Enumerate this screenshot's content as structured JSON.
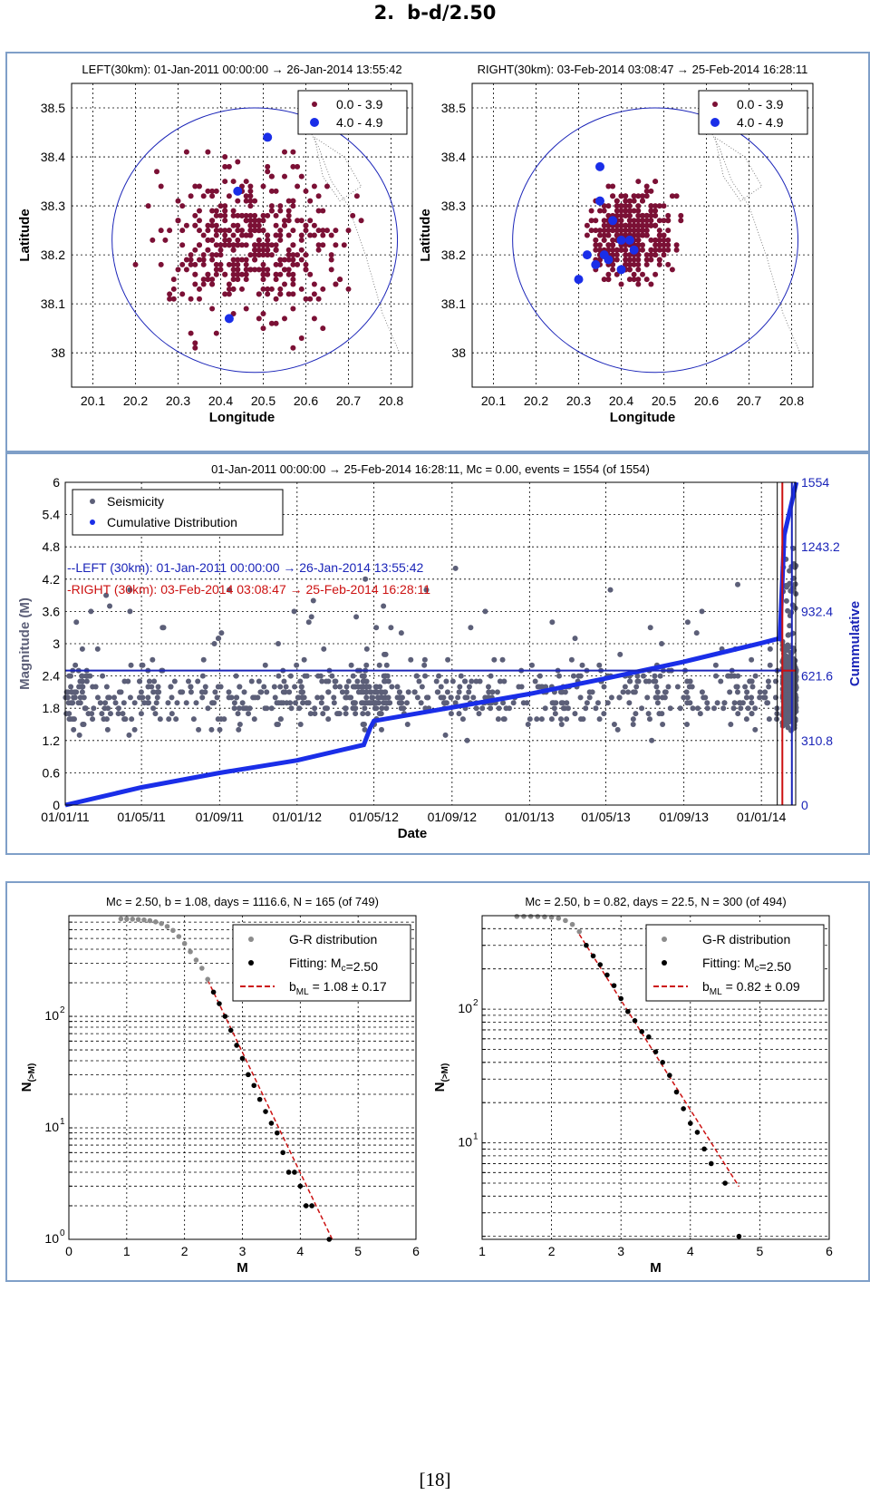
{
  "page": {
    "heading_number": "2.",
    "heading_text": "b-d/2.50",
    "page_number": "[18]"
  },
  "colors": {
    "small": "#7b1035",
    "large": "#1a2ee8",
    "seis": "#5c5f78",
    "cum": "#1a2ee8",
    "red": "#cc1111",
    "axis_blue": "#1a24b8",
    "panel_border": "#7f9fc8",
    "gr_grey": "#8c8c8c",
    "fit_black": "#000000"
  },
  "chart_data": [
    {
      "type": "scatter",
      "id": "map-left",
      "title": "LEFT(30km): 01-Jan-2011 00:00:00 → 26-Jan-2014 13:55:42",
      "xlabel": "Longitude",
      "ylabel": "Latitude",
      "xlim": [
        20.05,
        20.85
      ],
      "ylim": [
        37.93,
        38.55
      ],
      "xticks": [
        "20.1",
        "20.2",
        "20.3",
        "20.4",
        "20.5",
        "20.6",
        "20.7",
        "20.8"
      ],
      "yticks": [
        "38",
        "38.1",
        "38.2",
        "38.3",
        "38.4",
        "38.5"
      ],
      "grid": true,
      "legend_position": "top-right",
      "circle": {
        "center": [
          20.48,
          38.23
        ],
        "rx": 0.335,
        "ry": 0.27
      },
      "series": [
        {
          "name": "0.0 - 3.9",
          "center": [
            20.48,
            38.22
          ],
          "spread": [
            0.14,
            0.11
          ],
          "count": 420,
          "seed": 11
        },
        {
          "name": "4.0 - 4.9",
          "points": [
            [
              20.51,
              38.44
            ],
            [
              20.44,
              38.33
            ],
            [
              20.42,
              38.07
            ]
          ]
        }
      ]
    },
    {
      "type": "scatter",
      "id": "map-right",
      "title": "RIGHT(30km): 03-Feb-2014 03:08:47 → 25-Feb-2014 16:28:11",
      "xlabel": "Longitude",
      "ylabel": "Latitude",
      "xlim": [
        20.05,
        20.85
      ],
      "ylim": [
        37.93,
        38.55
      ],
      "xticks": [
        "20.1",
        "20.2",
        "20.3",
        "20.4",
        "20.5",
        "20.6",
        "20.7",
        "20.8"
      ],
      "yticks": [
        "38",
        "38.1",
        "38.2",
        "38.3",
        "38.4",
        "38.5"
      ],
      "grid": true,
      "legend_position": "top-right",
      "circle": {
        "center": [
          20.48,
          38.23
        ],
        "rx": 0.335,
        "ry": 0.27
      },
      "series": [
        {
          "name": "0.0 - 3.9",
          "center": [
            20.42,
            38.24
          ],
          "spread": [
            0.06,
            0.06
          ],
          "count": 380,
          "seed": 23
        },
        {
          "name": "4.0 - 4.9",
          "points": [
            [
              20.35,
              38.38
            ],
            [
              20.35,
              38.31
            ],
            [
              20.38,
              38.27
            ],
            [
              20.4,
              38.23
            ],
            [
              20.42,
              38.23
            ],
            [
              20.43,
              38.21
            ],
            [
              20.36,
              38.2
            ],
            [
              20.32,
              38.2
            ],
            [
              20.34,
              38.18
            ],
            [
              20.37,
              38.19
            ],
            [
              20.4,
              38.17
            ],
            [
              20.3,
              38.15
            ]
          ]
        }
      ]
    },
    {
      "type": "scatter",
      "id": "timeline",
      "title": "01-Jan-2011 00:00:00 → 25-Feb-2014 16:28:11, Mc = 0.00, events = 1554 (of 1554)",
      "xlabel": "Date",
      "ylabel": "Magnitude (M)",
      "y2label": "Cummulative",
      "xlim": [
        "01/01/11",
        "24/02/14"
      ],
      "xticks": [
        "01/01/11",
        "01/05/11",
        "01/09/11",
        "01/01/12",
        "01/05/12",
        "01/09/12",
        "01/01/13",
        "01/05/13",
        "01/09/13",
        "01/01/14"
      ],
      "ylim": [
        0,
        6
      ],
      "yticks": [
        "0",
        "0.6",
        "1.2",
        "1.8",
        "2.4",
        "3",
        "3.6",
        "4.2",
        "4.8",
        "5.4",
        "6"
      ],
      "y2lim": [
        0,
        1554
      ],
      "y2ticks": [
        "0",
        "310.8",
        "621.6",
        "932.4",
        "1243.2",
        "1554"
      ],
      "grid": true,
      "legend_position": "top-left",
      "legend": [
        "Seismicity",
        "Cumulative Distribution"
      ],
      "annotations": [
        "--LEFT (30km): 01-Jan-2011 00:00:00 → 26-Jan-2014 13:55:42",
        "-RIGHT (30km): 03-Feb-2014 03:08:47 → 25-Feb-2014 16:28:11"
      ],
      "hline_mc": 2.5,
      "seismicity": {
        "count": 1554,
        "seed": 37
      },
      "cumulative": {
        "dates": [
          "01/01/11",
          "01/05/11",
          "01/09/11",
          "01/01/12",
          "15/04/12",
          "25/04/12",
          "01/05/12",
          "01/09/12",
          "01/01/13",
          "01/05/13",
          "01/09/13",
          "01/01/14",
          "26/01/14",
          "30/01/14",
          "06/02/14",
          "25/02/14"
        ],
        "values": [
          0,
          85,
          155,
          215,
          290,
          370,
          405,
          470,
          535,
          610,
          690,
          780,
          800,
          800,
          1300,
          1554
        ]
      },
      "vlines": [
        {
          "date": "26/01/14",
          "color": "black"
        },
        {
          "date": "03/02/14",
          "color": "red"
        },
        {
          "date": "18/02/14",
          "color": "blue"
        }
      ]
    },
    {
      "type": "scatter",
      "id": "gr-left",
      "title": "Mc = 2.50, b = 1.08, days = 1116.6, N = 165 (of 749)",
      "xlabel": "M",
      "ylabel": "N(>M)",
      "xlim": [
        0,
        6
      ],
      "xticks": [
        "0",
        "1",
        "2",
        "3",
        "4",
        "5",
        "6"
      ],
      "ylog": true,
      "ylim": [
        1,
        800
      ],
      "ytick_exps": [
        "0",
        "1",
        "2"
      ],
      "legend_position": "top-right",
      "legend": [
        "G-R distribution",
        "Fitting: M",
        "c",
        "=2.50",
        "b",
        "ML",
        " = 1.08 ± 0.17"
      ],
      "gr_grey": [
        [
          0.9,
          749
        ],
        [
          1.0,
          748
        ],
        [
          1.1,
          745
        ],
        [
          1.2,
          740
        ],
        [
          1.3,
          733
        ],
        [
          1.4,
          722
        ],
        [
          1.5,
          704
        ],
        [
          1.6,
          680
        ],
        [
          1.7,
          640
        ],
        [
          1.8,
          590
        ],
        [
          1.9,
          520
        ],
        [
          2.0,
          450
        ],
        [
          2.1,
          380
        ],
        [
          2.2,
          320
        ],
        [
          2.3,
          270
        ],
        [
          2.4,
          215
        ]
      ],
      "fit_points": [
        [
          2.5,
          165
        ],
        [
          2.6,
          130
        ],
        [
          2.7,
          100
        ],
        [
          2.8,
          75
        ],
        [
          2.9,
          55
        ],
        [
          3.0,
          42
        ],
        [
          3.1,
          30
        ],
        [
          3.2,
          24
        ],
        [
          3.3,
          18
        ],
        [
          3.4,
          14
        ],
        [
          3.5,
          11
        ],
        [
          3.6,
          9
        ],
        [
          3.7,
          6
        ],
        [
          3.8,
          4
        ],
        [
          3.9,
          4
        ],
        [
          4.0,
          3
        ],
        [
          4.1,
          2
        ],
        [
          4.2,
          2
        ],
        [
          4.5,
          1
        ]
      ],
      "fit_line": {
        "mc": 2.5,
        "b": 1.08,
        "n_at_mc": 165,
        "x_end": 4.55
      }
    },
    {
      "type": "scatter",
      "id": "gr-right",
      "title": "Mc = 2.50, b = 0.82, days = 22.5, N = 300 (of 494)",
      "xlabel": "M",
      "ylabel": "N(>M)",
      "xlim": [
        1,
        6
      ],
      "xticks": [
        "1",
        "2",
        "3",
        "4",
        "5",
        "6"
      ],
      "ylog": true,
      "ylim": [
        1.9,
        500
      ],
      "ytick_exps": [
        "1",
        "2"
      ],
      "legend_position": "top-right",
      "legend": [
        "G-R distribution",
        "Fitting: M",
        "c",
        "=2.50",
        "b",
        "ML",
        " = 0.82 ± 0.09"
      ],
      "gr_grey": [
        [
          1.5,
          494
        ],
        [
          1.6,
          494
        ],
        [
          1.7,
          494
        ],
        [
          1.8,
          493
        ],
        [
          1.9,
          490
        ],
        [
          2.0,
          486
        ],
        [
          2.1,
          478
        ],
        [
          2.2,
          460
        ],
        [
          2.3,
          430
        ],
        [
          2.4,
          380
        ]
      ],
      "fit_points": [
        [
          2.5,
          300
        ],
        [
          2.6,
          250
        ],
        [
          2.7,
          215
        ],
        [
          2.8,
          180
        ],
        [
          2.9,
          150
        ],
        [
          3.0,
          120
        ],
        [
          3.1,
          96
        ],
        [
          3.2,
          82
        ],
        [
          3.3,
          68
        ],
        [
          3.4,
          62
        ],
        [
          3.5,
          48
        ],
        [
          3.6,
          40
        ],
        [
          3.7,
          32
        ],
        [
          3.8,
          24
        ],
        [
          3.9,
          18
        ],
        [
          4.0,
          14
        ],
        [
          4.1,
          12
        ],
        [
          4.2,
          9
        ],
        [
          4.3,
          7
        ],
        [
          4.5,
          5
        ],
        [
          4.7,
          2
        ]
      ],
      "fit_line": {
        "mc": 2.5,
        "b": 0.82,
        "n_at_mc": 300,
        "x_end": 4.7
      }
    }
  ]
}
